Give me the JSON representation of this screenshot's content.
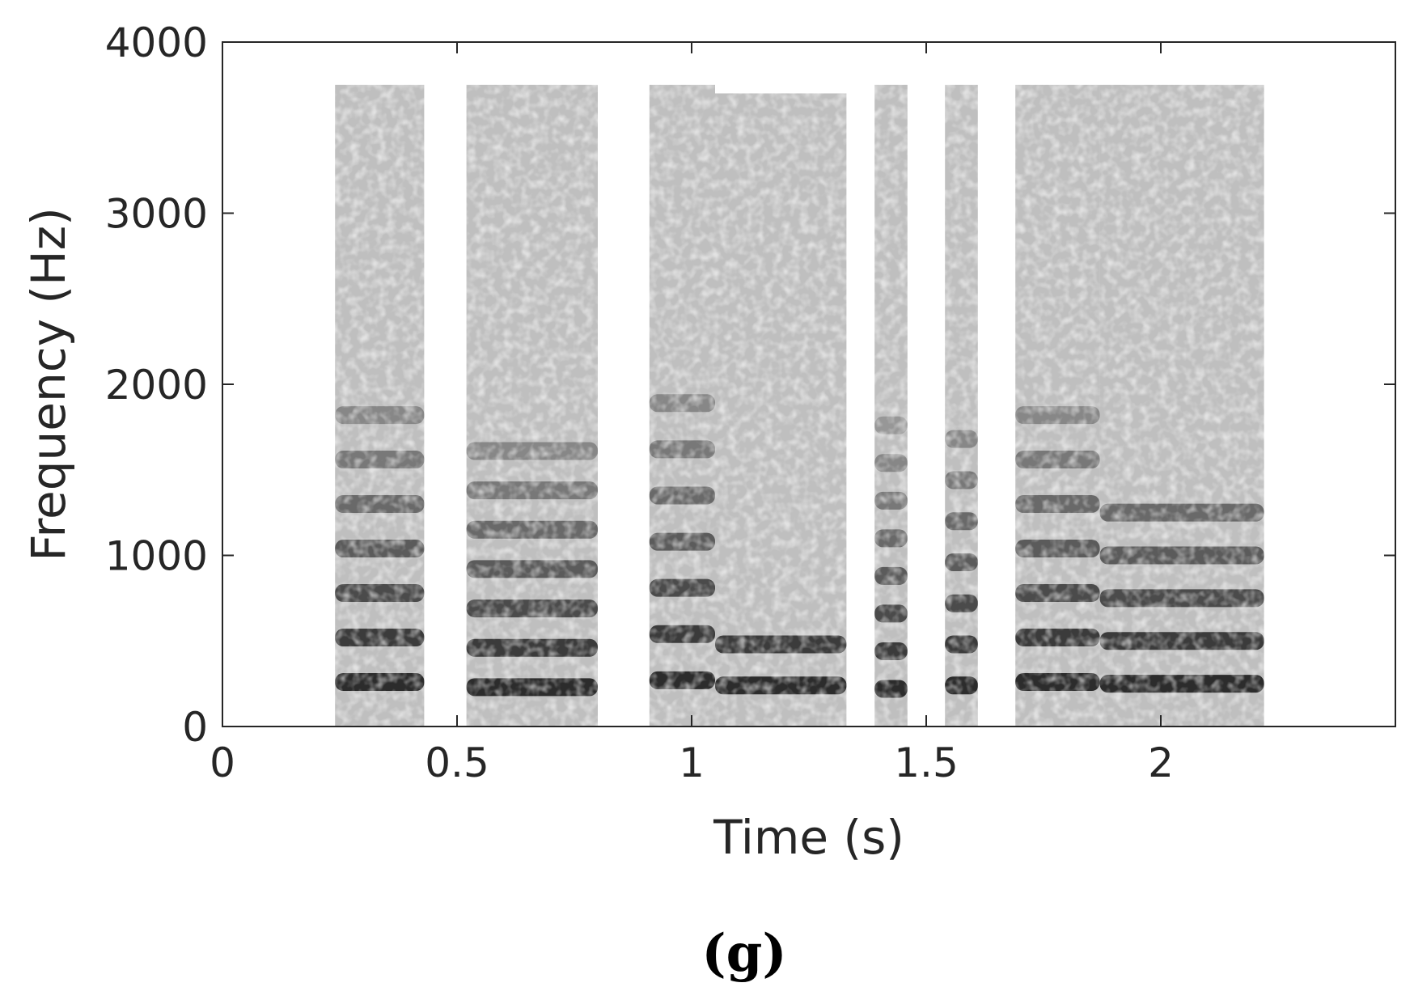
{
  "chart_data": {
    "type": "heatmap",
    "xlabel": "Time (s)",
    "ylabel": "Frequency (Hz)",
    "xlim": [
      0,
      2.5
    ],
    "ylim": [
      0,
      4000
    ],
    "x_ticks": [
      "0",
      "0.5",
      "1",
      "1.5",
      "2"
    ],
    "x_tick_values": [
      0,
      0.5,
      1,
      1.5,
      2
    ],
    "y_ticks": [
      "0",
      "1000",
      "2000",
      "3000",
      "4000"
    ],
    "y_tick_values": [
      0,
      1000,
      2000,
      3000,
      4000
    ],
    "grid": false,
    "colormap": "grayscale",
    "segments": [
      {
        "t_start": 0.24,
        "t_end": 0.43,
        "f_max": 3750,
        "f0": 260,
        "harmonics_max": 2000
      },
      {
        "t_start": 0.52,
        "t_end": 0.8,
        "f_max": 3750,
        "f0": 230,
        "harmonics_max": 1800
      },
      {
        "t_start": 0.91,
        "t_end": 1.05,
        "f_max": 3750,
        "f0": 270,
        "harmonics_max": 2000
      },
      {
        "t_start": 1.05,
        "t_end": 1.33,
        "f_max": 3700,
        "f0": 240,
        "harmonics_max": 600
      },
      {
        "t_start": 1.39,
        "t_end": 1.46,
        "f_max": 3750,
        "f0": 220,
        "harmonics_max": 1800
      },
      {
        "t_start": 1.54,
        "t_end": 1.61,
        "f_max": 3750,
        "f0": 240,
        "harmonics_max": 1700
      },
      {
        "t_start": 1.69,
        "t_end": 1.87,
        "f_max": 3750,
        "f0": 260,
        "harmonics_max": 1900
      },
      {
        "t_start": 1.87,
        "t_end": 2.22,
        "f_max": 3750,
        "f0": 250,
        "harmonics_max": 1300
      }
    ]
  },
  "panel_label": "(g)"
}
